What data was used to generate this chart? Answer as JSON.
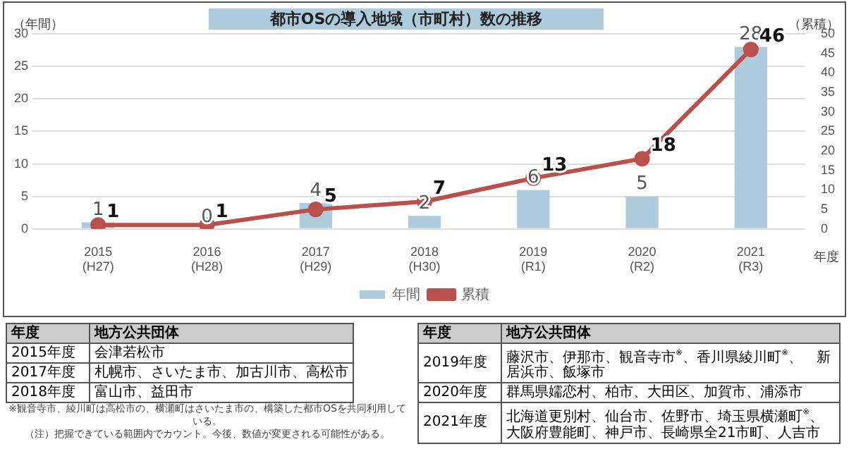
{
  "chart_data": {
    "type": "bar",
    "title": "都市OSの導入地域（市町村）数の推移",
    "categories": [
      "2015\n(H27)",
      "2016\n(H28)",
      "2017\n(H29)",
      "2018\n(H30)",
      "2019\n(R1)",
      "2020\n(R2)",
      "2021\n(R3)"
    ],
    "series": [
      {
        "name": "年間",
        "color": "#aecbdc",
        "values": [
          1,
          0,
          4,
          2,
          6,
          5,
          28
        ]
      },
      {
        "name": "累積",
        "type": "line",
        "axis": "y2",
        "color": "#b9504b",
        "values": [
          1,
          1,
          5,
          7,
          13,
          18,
          46
        ]
      }
    ],
    "ylabel": "（年間）",
    "y2label": "（累積）",
    "xlabel": "年度",
    "ylim": [
      0,
      30
    ],
    "yticks": [
      0,
      5,
      10,
      15,
      20,
      25,
      30
    ],
    "y2lim": [
      0,
      50
    ],
    "y2ticks": [
      0,
      5,
      10,
      15,
      20,
      25,
      30,
      35,
      40,
      45,
      50
    ],
    "grid": "y",
    "legend": "bottom",
    "marker": "circle",
    "data_labels": true,
    "annotations": [
      "年度",
      "地方公共団体",
      "2015年度",
      "会津若松市",
      "2017年度",
      "札幌市、さいたま市、加古川市、高松市",
      "2018年度",
      "富山市、益田市",
      "年度",
      "地方公共団体",
      "2019年度",
      "藤沢市、伊那市、観音寺市$^{※}$、香川県綾川町$^{※}$、　新居浜市、飯塚市",
      "2020年度",
      "群馬県嬬恋村、柏市、大田区、加賀市、浦添市",
      "2021年度",
      "北海道更別村、仙台市、佐野市、埼玉県横瀬町$^{※}$、大阪府豊能町、神戸市、長崎県全21市町、人吉市",
      "※観音寺市、綾川町は高松市の、横瀬町はさいたま市の、構築した都市OSを共同利用している。",
      "（注）把握できている範囲内でカウント。今後、数値が変更される可能性がある。"
    ]
  }
}
